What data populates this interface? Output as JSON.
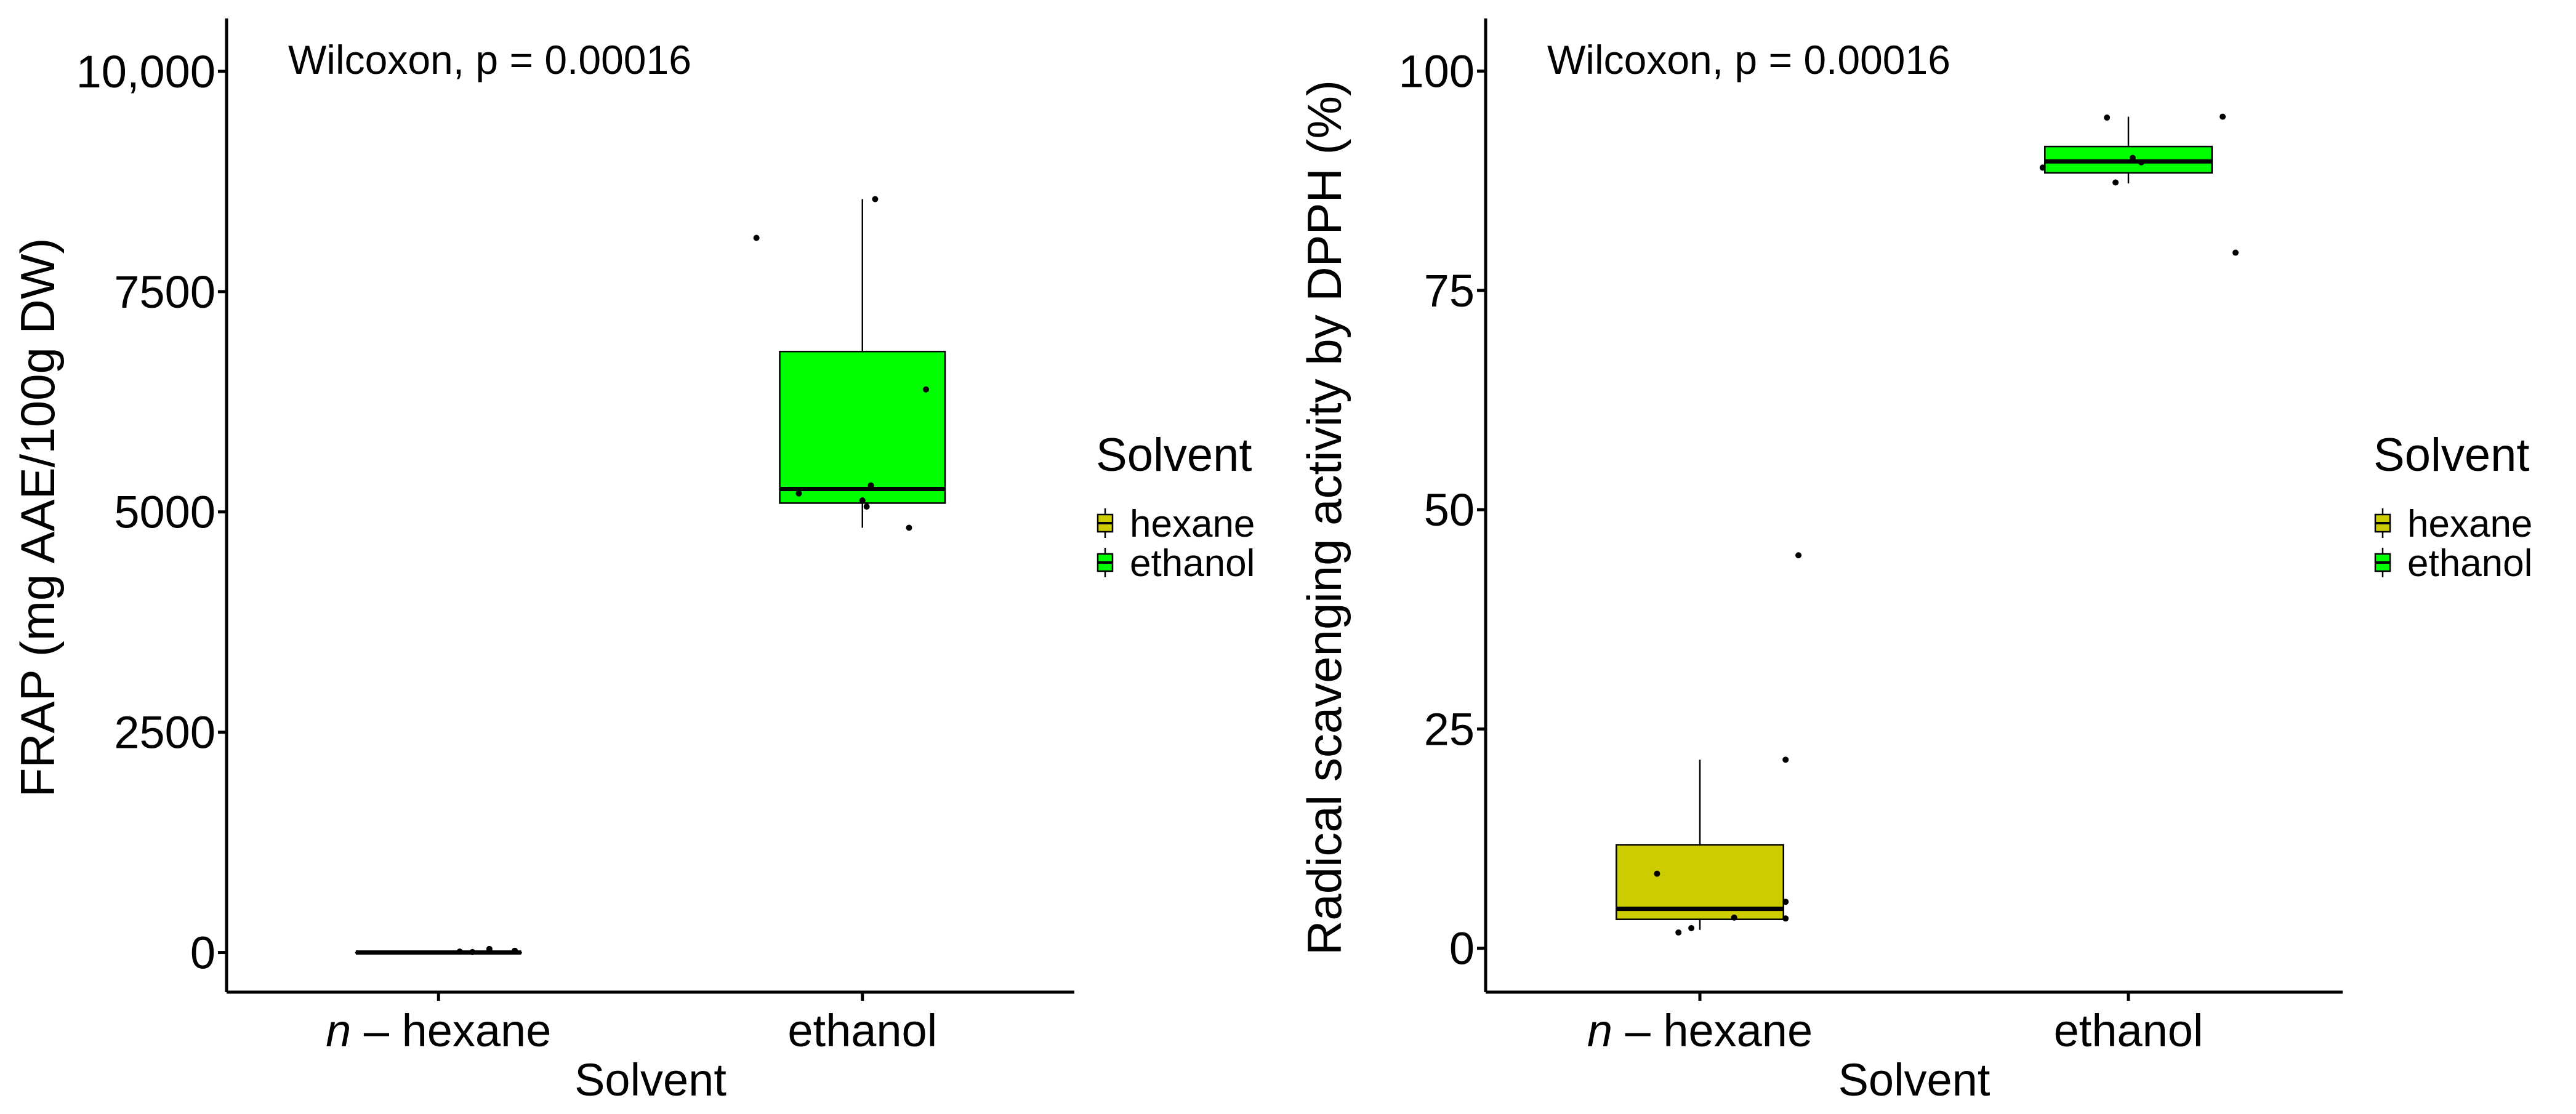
{
  "chart_data": [
    {
      "type": "box",
      "title": "",
      "annotation": "Wilcoxon, p = 0.00016",
      "xlabel": "Solvent",
      "ylabel": "FRAP (mg AAE/100g DW)",
      "categories": [
        "n – hexane",
        "ethanol"
      ],
      "category_labels": [
        {
          "italic": "n",
          "rest": " – hexane"
        },
        {
          "italic": "",
          "rest": "ethanol"
        }
      ],
      "yticks": [
        0,
        2500,
        5000,
        7500,
        10000
      ],
      "ytick_labels": [
        "0",
        "2500",
        "5000",
        "7500",
        "10,000"
      ],
      "ylim": [
        -450,
        10600
      ],
      "legend": {
        "title": "Solvent",
        "entries": [
          "hexane",
          "ethanol"
        ],
        "position": "right"
      },
      "colors": {
        "hexane": "#cccc00",
        "ethanol": "#00ff00"
      },
      "boxes": [
        {
          "name": "hexane",
          "q1": 0,
          "median": 0,
          "q3": 0,
          "whisker_low": 0,
          "whisker_high": 0,
          "points": [
            {
              "x": 0.05,
              "y": 10
            },
            {
              "x": 0.08,
              "y": 5
            },
            {
              "x": 0.12,
              "y": 40
            },
            {
              "x": 0.18,
              "y": 20
            }
          ]
        },
        {
          "name": "ethanol",
          "q1": 5100,
          "median": 5260,
          "q3": 6820,
          "whisker_low": 4820,
          "whisker_high": 8550,
          "points": [
            {
              "x": -0.25,
              "y": 8110
            },
            {
              "x": -0.15,
              "y": 5210
            },
            {
              "x": 0.0,
              "y": 5130
            },
            {
              "x": 0.02,
              "y": 5300
            },
            {
              "x": 0.01,
              "y": 5060
            },
            {
              "x": 0.03,
              "y": 8550
            },
            {
              "x": 0.15,
              "y": 6390
            },
            {
              "x": 0.11,
              "y": 4820
            }
          ]
        }
      ]
    },
    {
      "type": "box",
      "title": "",
      "annotation": "Wilcoxon, p = 0.00016",
      "xlabel": "Solvent",
      "ylabel": "Radical scavenging activity by DPPH (%)",
      "categories": [
        "n – hexane",
        "ethanol"
      ],
      "category_labels": [
        {
          "italic": "n",
          "rest": " – hexane"
        },
        {
          "italic": "",
          "rest": "ethanol"
        }
      ],
      "yticks": [
        0,
        25,
        50,
        75,
        100
      ],
      "ytick_labels": [
        "0",
        "25",
        "50",
        "75",
        "100"
      ],
      "ylim": [
        -5,
        106
      ],
      "legend": {
        "title": "Solvent",
        "entries": [
          "hexane",
          "ethanol"
        ],
        "position": "right"
      },
      "colors": {
        "hexane": "#cccc00",
        "ethanol": "#00ff00"
      },
      "boxes": [
        {
          "name": "hexane",
          "q1": 3.3,
          "median": 4.5,
          "q3": 11.8,
          "whisker_low": 2.1,
          "whisker_high": 21.5,
          "points": [
            {
              "x": -0.1,
              "y": 8.5
            },
            {
              "x": -0.05,
              "y": 1.8
            },
            {
              "x": -0.02,
              "y": 2.3
            },
            {
              "x": 0.08,
              "y": 3.5
            },
            {
              "x": 0.2,
              "y": 21.5
            },
            {
              "x": 0.2,
              "y": 5.3
            },
            {
              "x": 0.2,
              "y": 3.4
            },
            {
              "x": 0.23,
              "y": 44.8
            }
          ]
        },
        {
          "name": "ethanol",
          "q1": 88.4,
          "median": 89.7,
          "q3": 91.4,
          "whisker_low": 87.2,
          "whisker_high": 94.8,
          "points": [
            {
              "x": -0.2,
              "y": 89.0
            },
            {
              "x": -0.05,
              "y": 94.7
            },
            {
              "x": -0.03,
              "y": 87.3
            },
            {
              "x": 0.01,
              "y": 90.1
            },
            {
              "x": 0.03,
              "y": 89.6
            },
            {
              "x": 0.22,
              "y": 94.8
            },
            {
              "x": 0.25,
              "y": 79.3
            }
          ]
        }
      ]
    }
  ]
}
